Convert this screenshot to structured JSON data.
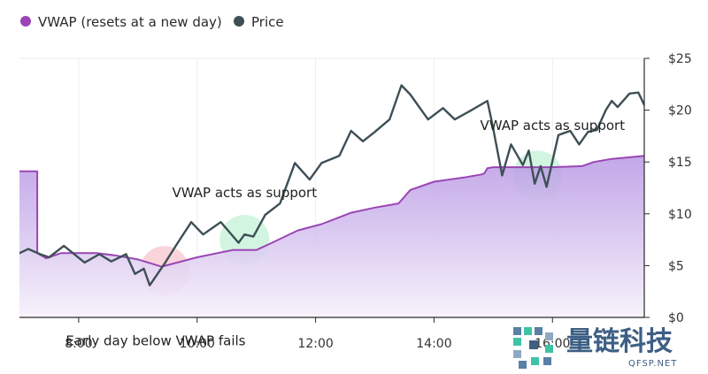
{
  "chart_data": {
    "type": "line",
    "title": "",
    "xlabel": "",
    "ylabel": "",
    "x_domain": [
      "7:00",
      "17:30"
    ],
    "xlim": [
      7.0,
      17.55
    ],
    "ylim": [
      0,
      25
    ],
    "x_ticks": [
      {
        "value": 8,
        "label": "8:00"
      },
      {
        "value": 10,
        "label": "10:00"
      },
      {
        "value": 12,
        "label": "12:00"
      },
      {
        "value": 14,
        "label": "14:00"
      },
      {
        "value": 16,
        "label": "16:00"
      }
    ],
    "y_ticks": [
      {
        "value": 0,
        "label": "$0"
      },
      {
        "value": 5,
        "label": "$5"
      },
      {
        "value": 10,
        "label": "$10"
      },
      {
        "value": 15,
        "label": "$15"
      },
      {
        "value": 20,
        "label": "$20"
      },
      {
        "value": 25,
        "label": "$25"
      }
    ],
    "legend_position": "top-left",
    "grid": {
      "vertical": true,
      "horizontal": false
    },
    "y_axis_side": "right",
    "series": [
      {
        "name": "VWAP (resets at a new day)",
        "color": "#9b45b5",
        "fill": true,
        "points": [
          [
            7.0,
            14.1
          ],
          [
            7.3,
            14.1
          ],
          [
            7.3,
            6.2
          ],
          [
            7.45,
            5.7
          ],
          [
            7.7,
            6.2
          ],
          [
            8.3,
            6.2
          ],
          [
            8.6,
            6.0
          ],
          [
            9.0,
            5.6
          ],
          [
            9.4,
            4.9
          ],
          [
            10.0,
            5.8
          ],
          [
            10.6,
            6.5
          ],
          [
            11.0,
            6.5
          ],
          [
            11.3,
            7.3
          ],
          [
            11.7,
            8.4
          ],
          [
            12.1,
            9.0
          ],
          [
            12.6,
            10.1
          ],
          [
            13.0,
            10.6
          ],
          [
            13.4,
            11.0
          ],
          [
            13.6,
            12.3
          ],
          [
            14.0,
            13.1
          ],
          [
            14.5,
            13.5
          ],
          [
            14.8,
            13.8
          ],
          [
            14.85,
            13.9
          ],
          [
            14.9,
            14.4
          ],
          [
            15.0,
            14.5
          ],
          [
            15.5,
            14.5
          ],
          [
            16.0,
            14.5
          ],
          [
            16.5,
            14.6
          ],
          [
            16.7,
            15.0
          ],
          [
            17.0,
            15.3
          ],
          [
            17.3,
            15.45
          ],
          [
            17.55,
            15.6
          ]
        ]
      },
      {
        "name": "Price",
        "color": "#3e4f56",
        "fill": false,
        "points": [
          [
            7.0,
            6.2
          ],
          [
            7.15,
            6.6
          ],
          [
            7.35,
            6.1
          ],
          [
            7.5,
            5.8
          ],
          [
            7.75,
            6.9
          ],
          [
            8.1,
            5.3
          ],
          [
            8.35,
            6.1
          ],
          [
            8.55,
            5.4
          ],
          [
            8.8,
            6.1
          ],
          [
            8.95,
            4.2
          ],
          [
            9.1,
            4.7
          ],
          [
            9.2,
            3.1
          ],
          [
            9.45,
            5.2
          ],
          [
            9.65,
            7.0
          ],
          [
            9.9,
            9.2
          ],
          [
            10.1,
            8.0
          ],
          [
            10.4,
            9.2
          ],
          [
            10.7,
            7.2
          ],
          [
            10.8,
            8.0
          ],
          [
            10.95,
            7.8
          ],
          [
            11.15,
            9.9
          ],
          [
            11.4,
            11.0
          ],
          [
            11.65,
            14.9
          ],
          [
            11.9,
            13.3
          ],
          [
            12.1,
            14.9
          ],
          [
            12.4,
            15.6
          ],
          [
            12.6,
            18.0
          ],
          [
            12.8,
            17.0
          ],
          [
            13.0,
            17.9
          ],
          [
            13.25,
            19.1
          ],
          [
            13.45,
            22.4
          ],
          [
            13.6,
            21.5
          ],
          [
            13.9,
            19.1
          ],
          [
            14.15,
            20.2
          ],
          [
            14.35,
            19.1
          ],
          [
            14.6,
            19.9
          ],
          [
            14.9,
            20.9
          ],
          [
            14.98,
            18.8
          ],
          [
            15.15,
            13.7
          ],
          [
            15.3,
            16.7
          ],
          [
            15.5,
            14.7
          ],
          [
            15.6,
            16.1
          ],
          [
            15.7,
            12.9
          ],
          [
            15.8,
            14.6
          ],
          [
            15.9,
            12.6
          ],
          [
            16.1,
            17.6
          ],
          [
            16.3,
            18.0
          ],
          [
            16.45,
            16.7
          ],
          [
            16.6,
            17.9
          ],
          [
            16.75,
            18.1
          ],
          [
            16.9,
            20.0
          ],
          [
            17.0,
            20.9
          ],
          [
            17.1,
            20.3
          ],
          [
            17.3,
            21.6
          ],
          [
            17.45,
            21.7
          ],
          [
            17.55,
            20.5
          ],
          [
            17.8,
            21.2
          ],
          [
            17.9,
            19.2
          ],
          [
            18.0,
            20.0
          ]
        ]
      }
    ],
    "annotations": [
      {
        "text": "Early day below VWAP fails",
        "x": 9.3,
        "y": -2.7,
        "align": "middle"
      },
      {
        "text": "VWAP acts as support",
        "x": 10.8,
        "y": 11.6,
        "align": "middle"
      },
      {
        "text": "VWAP acts as support",
        "x": 16.0,
        "y": 18.1,
        "align": "middle"
      }
    ],
    "highlights": [
      {
        "x": 9.45,
        "y": 4.5,
        "color": "#f9c9d2"
      },
      {
        "x": 10.8,
        "y": 7.5,
        "color": "#c6f2d8"
      },
      {
        "x": 15.75,
        "y": 13.7,
        "color": "#c6f2d8"
      }
    ]
  },
  "watermark": {
    "title": "量链科技",
    "subtitle": "QFSP.NET"
  }
}
